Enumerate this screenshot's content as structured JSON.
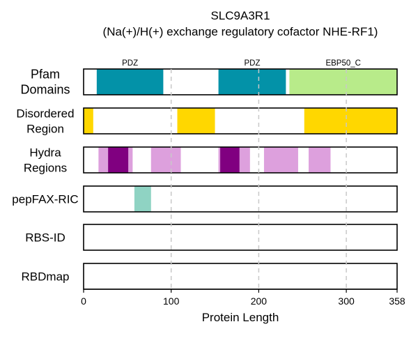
{
  "chart_data": {
    "type": "bar",
    "title_line1": "SLC9A3R1",
    "title_line2": "(Na(+)/H(+) exchange regulatory cofactor NHE-RF1)",
    "xlabel": "Protein Length",
    "xlim": [
      0,
      358
    ],
    "xticks": [
      0,
      100,
      200,
      300,
      358
    ],
    "grid_lines": [
      100,
      200,
      300
    ],
    "tracks": [
      {
        "name": "Pfam Domains",
        "label_lines": [
          "Pfam",
          "Domains"
        ],
        "segments": [
          {
            "start": 15,
            "end": 91,
            "color": "#0392a8",
            "label": "PDZ"
          },
          {
            "start": 154,
            "end": 231,
            "color": "#0392a8",
            "label": "PDZ"
          },
          {
            "start": 235,
            "end": 358,
            "color": "#b8eb8a",
            "label": "EBP50_C"
          }
        ]
      },
      {
        "name": "Disordered Region",
        "label_lines": [
          "Disordered",
          "Region"
        ],
        "segments": [
          {
            "start": 0,
            "end": 11,
            "color": "#ffd700"
          },
          {
            "start": 107,
            "end": 150,
            "color": "#ffd700"
          },
          {
            "start": 252,
            "end": 358,
            "color": "#ffd700"
          }
        ]
      },
      {
        "name": "Hydra Regions",
        "label_lines": [
          "Hydra",
          "Regions"
        ],
        "segments": [
          {
            "start": 17,
            "end": 56,
            "color": "#dda0dd"
          },
          {
            "start": 28,
            "end": 51,
            "color": "#800080"
          },
          {
            "start": 77,
            "end": 111,
            "color": "#dda0dd"
          },
          {
            "start": 154,
            "end": 190,
            "color": "#dda0dd"
          },
          {
            "start": 156,
            "end": 178,
            "color": "#800080"
          },
          {
            "start": 206,
            "end": 245,
            "color": "#dda0dd"
          },
          {
            "start": 257,
            "end": 282,
            "color": "#dda0dd"
          }
        ]
      },
      {
        "name": "pepFAX-RIC",
        "label_lines": [
          "pepFAX-RIC"
        ],
        "segments": [
          {
            "start": 58,
            "end": 77,
            "color": "#8fd3c3"
          }
        ]
      },
      {
        "name": "RBS-ID",
        "label_lines": [
          "RBS-ID"
        ],
        "segments": []
      },
      {
        "name": "RBDmap",
        "label_lines": [
          "RBDmap"
        ],
        "segments": []
      }
    ]
  }
}
